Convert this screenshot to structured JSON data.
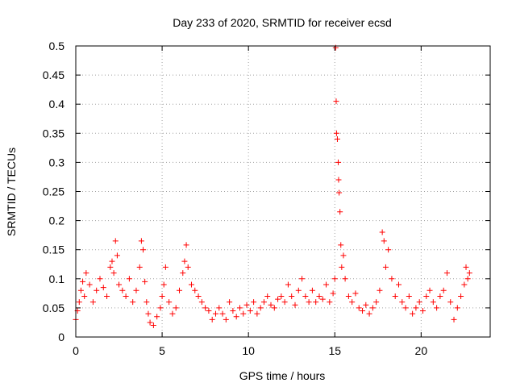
{
  "chart_data": {
    "type": "scatter",
    "title": "Day 233 of 2020, SRMTID for receiver ecsd",
    "xlabel": "GPS time / hours",
    "ylabel": "SRMTID / TECUs",
    "xlim": [
      0,
      24
    ],
    "ylim": [
      0,
      0.5
    ],
    "xticks": [
      0,
      5,
      10,
      15,
      20
    ],
    "xtick_labels": [
      "0",
      "5",
      "10",
      "15",
      "20"
    ],
    "yticks": [
      0,
      0.05,
      0.1,
      0.15,
      0.2,
      0.25,
      0.3,
      0.35,
      0.4,
      0.45,
      0.5
    ],
    "ytick_labels": [
      "0",
      "0.05",
      "0.1",
      "0.15",
      "0.2",
      "0.25",
      "0.3",
      "0.35",
      "0.4",
      "0.45",
      "0.5"
    ],
    "grid": true,
    "marker": "+",
    "marker_color": "#ff0000",
    "series": [
      {
        "name": "SRMTID",
        "points": [
          [
            0.0,
            0.03
          ],
          [
            0.1,
            0.045
          ],
          [
            0.2,
            0.06
          ],
          [
            0.3,
            0.08
          ],
          [
            0.4,
            0.095
          ],
          [
            0.5,
            0.07
          ],
          [
            0.6,
            0.11
          ],
          [
            0.8,
            0.09
          ],
          [
            1.0,
            0.06
          ],
          [
            1.2,
            0.08
          ],
          [
            1.4,
            0.1
          ],
          [
            1.6,
            0.085
          ],
          [
            1.8,
            0.07
          ],
          [
            2.0,
            0.12
          ],
          [
            2.1,
            0.13
          ],
          [
            2.2,
            0.11
          ],
          [
            2.3,
            0.165
          ],
          [
            2.4,
            0.14
          ],
          [
            2.5,
            0.09
          ],
          [
            2.7,
            0.08
          ],
          [
            2.9,
            0.07
          ],
          [
            3.1,
            0.1
          ],
          [
            3.3,
            0.06
          ],
          [
            3.5,
            0.08
          ],
          [
            3.7,
            0.12
          ],
          [
            3.8,
            0.165
          ],
          [
            3.9,
            0.15
          ],
          [
            4.0,
            0.095
          ],
          [
            4.1,
            0.06
          ],
          [
            4.2,
            0.04
          ],
          [
            4.3,
            0.025
          ],
          [
            4.5,
            0.02
          ],
          [
            4.7,
            0.035
          ],
          [
            4.9,
            0.05
          ],
          [
            5.0,
            0.07
          ],
          [
            5.1,
            0.09
          ],
          [
            5.2,
            0.12
          ],
          [
            5.4,
            0.06
          ],
          [
            5.6,
            0.04
          ],
          [
            5.8,
            0.05
          ],
          [
            6.0,
            0.08
          ],
          [
            6.2,
            0.11
          ],
          [
            6.3,
            0.13
          ],
          [
            6.4,
            0.158
          ],
          [
            6.5,
            0.12
          ],
          [
            6.7,
            0.09
          ],
          [
            6.9,
            0.08
          ],
          [
            7.1,
            0.07
          ],
          [
            7.3,
            0.06
          ],
          [
            7.5,
            0.05
          ],
          [
            7.7,
            0.045
          ],
          [
            7.9,
            0.03
          ],
          [
            8.1,
            0.04
          ],
          [
            8.3,
            0.05
          ],
          [
            8.5,
            0.04
          ],
          [
            8.7,
            0.03
          ],
          [
            8.9,
            0.06
          ],
          [
            9.1,
            0.045
          ],
          [
            9.3,
            0.035
          ],
          [
            9.5,
            0.05
          ],
          [
            9.7,
            0.04
          ],
          [
            9.9,
            0.055
          ],
          [
            10.1,
            0.045
          ],
          [
            10.3,
            0.06
          ],
          [
            10.5,
            0.04
          ],
          [
            10.7,
            0.05
          ],
          [
            10.9,
            0.06
          ],
          [
            11.1,
            0.07
          ],
          [
            11.3,
            0.055
          ],
          [
            11.5,
            0.05
          ],
          [
            11.7,
            0.065
          ],
          [
            11.9,
            0.07
          ],
          [
            12.1,
            0.06
          ],
          [
            12.3,
            0.09
          ],
          [
            12.5,
            0.07
          ],
          [
            12.7,
            0.055
          ],
          [
            12.9,
            0.08
          ],
          [
            13.1,
            0.1
          ],
          [
            13.3,
            0.07
          ],
          [
            13.5,
            0.06
          ],
          [
            13.7,
            0.08
          ],
          [
            13.9,
            0.06
          ],
          [
            14.1,
            0.07
          ],
          [
            14.3,
            0.065
          ],
          [
            14.5,
            0.09
          ],
          [
            14.7,
            0.06
          ],
          [
            14.9,
            0.075
          ],
          [
            15.0,
            0.1
          ],
          [
            15.05,
            0.497
          ],
          [
            15.08,
            0.405
          ],
          [
            15.1,
            0.35
          ],
          [
            15.15,
            0.34
          ],
          [
            15.2,
            0.3
          ],
          [
            15.22,
            0.27
          ],
          [
            15.25,
            0.248
          ],
          [
            15.3,
            0.215
          ],
          [
            15.35,
            0.158
          ],
          [
            15.4,
            0.12
          ],
          [
            15.5,
            0.14
          ],
          [
            15.6,
            0.1
          ],
          [
            15.8,
            0.07
          ],
          [
            16.0,
            0.06
          ],
          [
            16.2,
            0.075
          ],
          [
            16.4,
            0.05
          ],
          [
            16.6,
            0.045
          ],
          [
            16.8,
            0.055
          ],
          [
            17.0,
            0.04
          ],
          [
            17.2,
            0.05
          ],
          [
            17.4,
            0.06
          ],
          [
            17.6,
            0.08
          ],
          [
            17.75,
            0.18
          ],
          [
            17.85,
            0.165
          ],
          [
            17.95,
            0.12
          ],
          [
            18.1,
            0.15
          ],
          [
            18.3,
            0.1
          ],
          [
            18.5,
            0.07
          ],
          [
            18.7,
            0.09
          ],
          [
            18.9,
            0.06
          ],
          [
            19.1,
            0.05
          ],
          [
            19.3,
            0.07
          ],
          [
            19.5,
            0.04
          ],
          [
            19.7,
            0.05
          ],
          [
            19.9,
            0.06
          ],
          [
            20.1,
            0.045
          ],
          [
            20.3,
            0.07
          ],
          [
            20.5,
            0.08
          ],
          [
            20.7,
            0.06
          ],
          [
            20.9,
            0.05
          ],
          [
            21.1,
            0.07
          ],
          [
            21.3,
            0.08
          ],
          [
            21.5,
            0.11
          ],
          [
            21.7,
            0.06
          ],
          [
            21.9,
            0.03
          ],
          [
            22.1,
            0.05
          ],
          [
            22.3,
            0.07
          ],
          [
            22.5,
            0.09
          ],
          [
            22.6,
            0.12
          ],
          [
            22.7,
            0.1
          ],
          [
            22.8,
            0.11
          ]
        ]
      }
    ]
  }
}
